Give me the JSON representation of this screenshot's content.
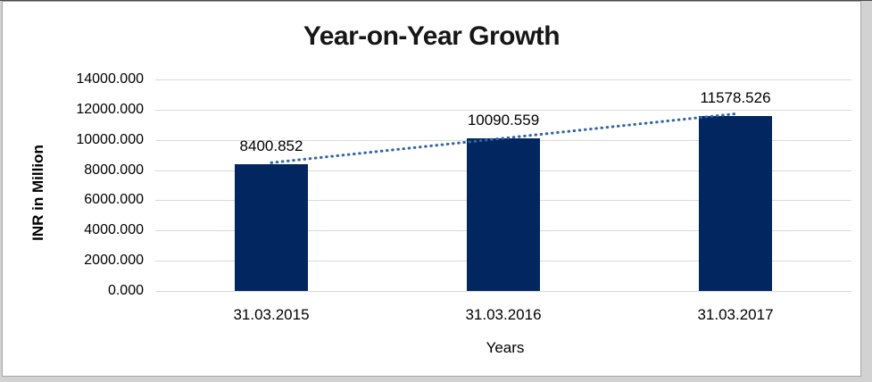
{
  "frame": {
    "outer_background": "#d2d2d2",
    "chart_background": "#ffffff",
    "border_color": "#a6a6a6",
    "top_edge_color": "#4a4a4a"
  },
  "chart_data": {
    "type": "bar",
    "title": "Year-on-Year Growth",
    "xlabel": "Years",
    "ylabel": "INR in Million",
    "categories": [
      "31.03.2015",
      "31.03.2016",
      "31.03.2017"
    ],
    "values": [
      8400.852,
      10090.559,
      11578.526
    ],
    "data_labels": [
      "8400.852",
      "10090.559",
      "11578.526"
    ],
    "y_ticks": [
      "14000.000",
      "12000.000",
      "10000.000",
      "8000.000",
      "6000.000",
      "4000.000",
      "2000.000",
      "0.000"
    ],
    "ylim": [
      0,
      14000
    ],
    "y_tick_step": 2000,
    "grid": true,
    "legend": "none",
    "bar_color": "#02265f",
    "gridline_color": "#d9d9d9",
    "trendline": {
      "style": "dotted",
      "color": "#3465a8",
      "from_category": "31.03.2015",
      "to_category": "31.03.2017"
    }
  }
}
